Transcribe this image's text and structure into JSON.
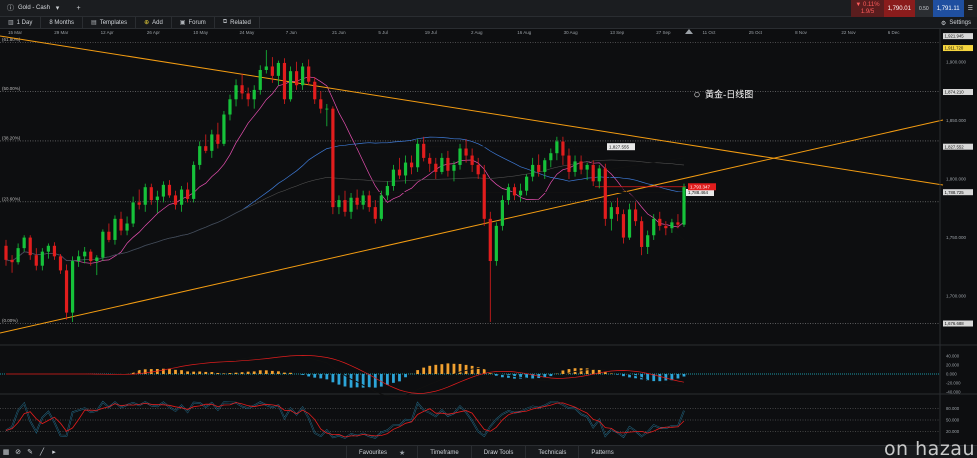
{
  "topbar": {
    "instrument": "Gold - Cash",
    "quotes": {
      "change": "▼ 0.11%",
      "change2": "1.9/5",
      "sell": "1,790.01",
      "buy_sub": "0.50",
      "buy": "1,791.11"
    }
  },
  "toolbar": {
    "timeframe": "1 Day",
    "range": "8 Months",
    "templates": "Templates",
    "add_label": "Add",
    "forum": "Forum",
    "related": "Related",
    "settings": "Settings"
  },
  "bottombar": {
    "tabs": [
      "Favourites",
      "Timeframe",
      "Draw Tools",
      "Technicals",
      "Patterns"
    ]
  },
  "watermark": "on hazau",
  "chart_data": {
    "type": "candlestick",
    "date_labels": [
      "15 Mar",
      "29 Mar",
      "12 Apr",
      "26 Apr",
      "10 May",
      "24 May",
      "7 Jun",
      "21 Jun",
      "5 Jul",
      "19 Jul",
      "2 Aug",
      "16 Aug",
      "30 Aug",
      "13 Sep",
      "27 Sep",
      "11 Oct",
      "25 Oct",
      "8 Nov",
      "22 Nov",
      "6 Dec"
    ],
    "price_axis": {
      "ylim": [
        1672,
        1922
      ],
      "fib_levels": [
        {
          "label": "(61.80%)",
          "value": 1916.46
        },
        {
          "label": "(50.00%)",
          "value": 1874.5
        },
        {
          "label": "(38.20%)",
          "value": 1832.5
        },
        {
          "label": "(23.60%)",
          "value": 1780.5
        },
        {
          "label": "(0.00%)",
          "value": 1676.5
        }
      ],
      "tags": [
        {
          "label": "1,921.945",
          "value": 1921.9,
          "color": "#d8d8d8"
        },
        {
          "label": "1,911.720",
          "value": 1911.72,
          "color": "#f5d53f"
        },
        {
          "label": "1,874.210",
          "value": 1874.21,
          "color": "#d8d8d8"
        },
        {
          "label": "1,827.552",
          "value": 1827.55,
          "color": "#d8d8d8"
        },
        {
          "label": "1,788.725",
          "value": 1788.73,
          "color": "#d8d8d8"
        },
        {
          "label": "1,676.688",
          "value": 1676.69,
          "color": "#d8d8d8"
        }
      ],
      "ticks": [
        "1,900.000",
        "1,850.000",
        "1,800.000",
        "1,750.000",
        "1,700.000"
      ]
    },
    "annotations": {
      "title_note": "黃金-日线图",
      "flag_resistance": "1,827.555",
      "flag_support": "1,788.464",
      "flag_current": "1,793.347"
    },
    "macd_ticks": [
      "40.000",
      "20.000",
      "0.000",
      "-20.000",
      "-40.000"
    ],
    "stoch_ticks": [
      "80.000",
      "50.000",
      "20.000"
    ],
    "series": [
      {
        "name": "candles",
        "ohlc": [
          [
            1743,
            1748,
            1726,
            1731
          ],
          [
            1731,
            1735,
            1720,
            1729
          ],
          [
            1729,
            1745,
            1727,
            1741
          ],
          [
            1741,
            1752,
            1738,
            1750
          ],
          [
            1750,
            1752,
            1731,
            1735
          ],
          [
            1735,
            1741,
            1722,
            1726
          ],
          [
            1726,
            1741,
            1722,
            1738
          ],
          [
            1738,
            1745,
            1732,
            1743
          ],
          [
            1743,
            1746,
            1731,
            1734
          ],
          [
            1734,
            1736,
            1719,
            1722
          ],
          [
            1722,
            1727,
            1680,
            1686
          ],
          [
            1686,
            1734,
            1678,
            1730
          ],
          [
            1730,
            1739,
            1725,
            1734
          ],
          [
            1734,
            1742,
            1728,
            1738
          ],
          [
            1738,
            1740,
            1726,
            1730
          ],
          [
            1730,
            1735,
            1718,
            1733
          ],
          [
            1733,
            1757,
            1730,
            1755
          ],
          [
            1755,
            1762,
            1746,
            1748
          ],
          [
            1748,
            1769,
            1744,
            1766
          ],
          [
            1766,
            1772,
            1752,
            1756
          ],
          [
            1756,
            1768,
            1752,
            1762
          ],
          [
            1762,
            1785,
            1759,
            1780
          ],
          [
            1780,
            1791,
            1774,
            1778
          ],
          [
            1778,
            1796,
            1772,
            1793
          ],
          [
            1793,
            1796,
            1778,
            1782
          ],
          [
            1782,
            1790,
            1771,
            1785
          ],
          [
            1785,
            1798,
            1780,
            1795
          ],
          [
            1795,
            1799,
            1784,
            1786
          ],
          [
            1786,
            1790,
            1774,
            1778
          ],
          [
            1778,
            1794,
            1772,
            1791
          ],
          [
            1791,
            1797,
            1780,
            1783
          ],
          [
            1783,
            1815,
            1780,
            1812
          ],
          [
            1812,
            1832,
            1808,
            1828
          ],
          [
            1828,
            1838,
            1822,
            1824
          ],
          [
            1824,
            1842,
            1818,
            1838
          ],
          [
            1838,
            1848,
            1826,
            1830
          ],
          [
            1830,
            1858,
            1828,
            1855
          ],
          [
            1855,
            1872,
            1850,
            1868
          ],
          [
            1868,
            1885,
            1862,
            1880
          ],
          [
            1880,
            1890,
            1868,
            1873
          ],
          [
            1873,
            1878,
            1862,
            1868
          ],
          [
            1868,
            1880,
            1860,
            1876
          ],
          [
            1876,
            1897,
            1872,
            1893
          ],
          [
            1893,
            1910,
            1890,
            1896
          ],
          [
            1896,
            1904,
            1882,
            1888
          ],
          [
            1888,
            1901,
            1880,
            1899
          ],
          [
            1899,
            1903,
            1864,
            1868
          ],
          [
            1868,
            1896,
            1866,
            1892
          ],
          [
            1892,
            1900,
            1876,
            1880
          ],
          [
            1880,
            1899,
            1876,
            1896
          ],
          [
            1896,
            1902,
            1880,
            1883
          ],
          [
            1883,
            1887,
            1864,
            1868
          ],
          [
            1868,
            1875,
            1856,
            1860
          ],
          [
            1860,
            1864,
            1845,
            1860
          ],
          [
            1860,
            1862,
            1770,
            1776
          ],
          [
            1776,
            1786,
            1770,
            1782
          ],
          [
            1782,
            1790,
            1768,
            1772
          ],
          [
            1772,
            1788,
            1766,
            1784
          ],
          [
            1784,
            1791,
            1774,
            1778
          ],
          [
            1778,
            1790,
            1774,
            1786
          ],
          [
            1786,
            1790,
            1772,
            1776
          ],
          [
            1776,
            1782,
            1762,
            1766
          ],
          [
            1766,
            1790,
            1764,
            1786
          ],
          [
            1786,
            1798,
            1782,
            1794
          ],
          [
            1794,
            1812,
            1790,
            1808
          ],
          [
            1808,
            1818,
            1800,
            1803
          ],
          [
            1803,
            1820,
            1796,
            1814
          ],
          [
            1814,
            1820,
            1804,
            1810
          ],
          [
            1810,
            1834,
            1806,
            1830
          ],
          [
            1830,
            1836,
            1815,
            1818
          ],
          [
            1818,
            1822,
            1806,
            1813
          ],
          [
            1813,
            1818,
            1800,
            1806
          ],
          [
            1806,
            1822,
            1804,
            1818
          ],
          [
            1818,
            1824,
            1802,
            1807
          ],
          [
            1807,
            1815,
            1798,
            1812
          ],
          [
            1812,
            1830,
            1808,
            1826
          ],
          [
            1826,
            1834,
            1814,
            1820
          ],
          [
            1820,
            1826,
            1806,
            1812
          ],
          [
            1812,
            1818,
            1800,
            1804
          ],
          [
            1804,
            1812,
            1760,
            1766
          ],
          [
            1766,
            1772,
            1678,
            1730
          ],
          [
            1730,
            1763,
            1726,
            1760
          ],
          [
            1760,
            1786,
            1756,
            1782
          ],
          [
            1782,
            1796,
            1778,
            1793
          ],
          [
            1793,
            1796,
            1782,
            1786
          ],
          [
            1786,
            1796,
            1781,
            1790
          ],
          [
            1790,
            1804,
            1786,
            1802
          ],
          [
            1802,
            1818,
            1798,
            1812
          ],
          [
            1812,
            1821,
            1802,
            1806
          ],
          [
            1806,
            1818,
            1800,
            1816
          ],
          [
            1816,
            1826,
            1810,
            1822
          ],
          [
            1822,
            1836,
            1816,
            1832
          ],
          [
            1832,
            1836,
            1812,
            1820
          ],
          [
            1820,
            1826,
            1800,
            1806
          ],
          [
            1806,
            1820,
            1802,
            1815
          ],
          [
            1815,
            1820,
            1804,
            1808
          ],
          [
            1808,
            1814,
            1799,
            1812
          ],
          [
            1812,
            1816,
            1794,
            1798
          ],
          [
            1798,
            1812,
            1792,
            1809
          ],
          [
            1809,
            1813,
            1760,
            1766
          ],
          [
            1766,
            1780,
            1756,
            1776
          ],
          [
            1776,
            1784,
            1764,
            1770
          ],
          [
            1770,
            1774,
            1745,
            1750
          ],
          [
            1750,
            1779,
            1748,
            1774
          ],
          [
            1774,
            1780,
            1760,
            1764
          ],
          [
            1764,
            1768,
            1735,
            1742
          ],
          [
            1742,
            1756,
            1736,
            1752
          ],
          [
            1752,
            1770,
            1748,
            1766
          ],
          [
            1766,
            1772,
            1756,
            1760
          ],
          [
            1760,
            1764,
            1752,
            1758
          ],
          [
            1758,
            1766,
            1754,
            1763
          ],
          [
            1763,
            1770,
            1758,
            1761
          ],
          [
            1761,
            1796,
            1759,
            1793
          ]
        ]
      }
    ]
  }
}
